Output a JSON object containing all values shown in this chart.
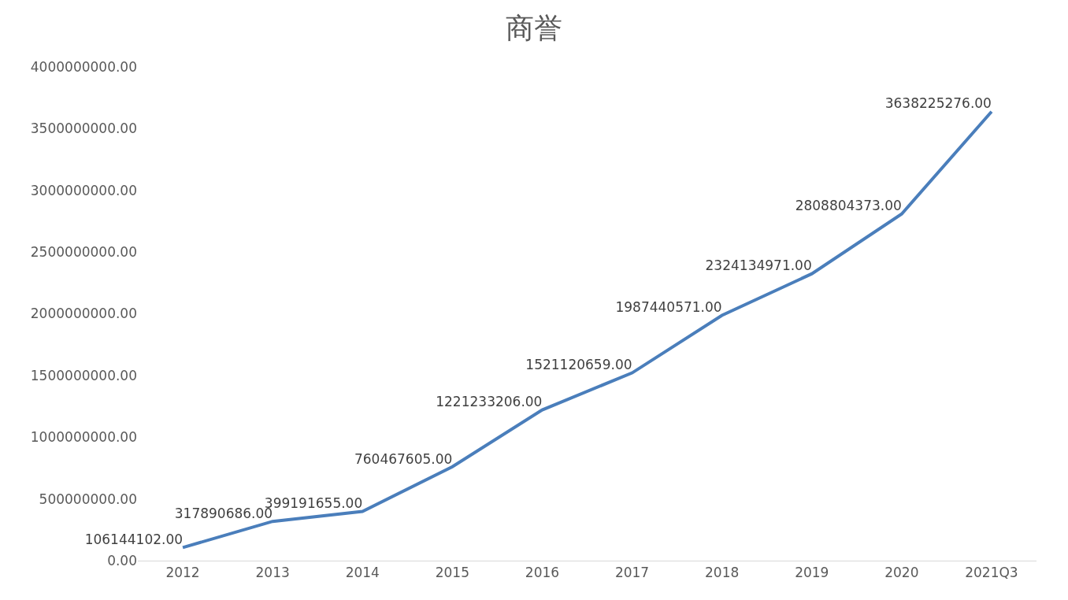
{
  "chart_data": {
    "type": "line",
    "title": "商誉",
    "categories": [
      "2012",
      "2013",
      "2014",
      "2015",
      "2016",
      "2017",
      "2018",
      "2019",
      "2020",
      "2021Q3"
    ],
    "series": [
      {
        "color": "#4a7ebb",
        "values": [
          106144102,
          317890686,
          399191655,
          760467605,
          1221233206,
          1521120659,
          1987440571,
          2324134971,
          2808804373,
          3638225276
        ],
        "value_labels": [
          "106144102.00",
          "317890686.00",
          "399191655.00",
          "760467605.00",
          "1221233206.00",
          "1521120659.00",
          "1987440571.00",
          "2324134971.00",
          "2808804373.00",
          "3638225276.00"
        ]
      }
    ],
    "ylim": [
      0,
      4000000000
    ],
    "yticks": [
      {
        "value": 0,
        "label": "0.00"
      },
      {
        "value": 500000000,
        "label": "500000000.00"
      },
      {
        "value": 1000000000,
        "label": "1000000000.00"
      },
      {
        "value": 1500000000,
        "label": "1500000000.00"
      },
      {
        "value": 2000000000,
        "label": "2000000000.00"
      },
      {
        "value": 2500000000,
        "label": "2500000000.00"
      },
      {
        "value": 3000000000,
        "label": "3000000000.00"
      },
      {
        "value": 3500000000,
        "label": "3500000000.00"
      },
      {
        "value": 4000000000,
        "label": "4000000000.00"
      }
    ],
    "legend": false,
    "marker": "none",
    "line_style": "solid"
  }
}
